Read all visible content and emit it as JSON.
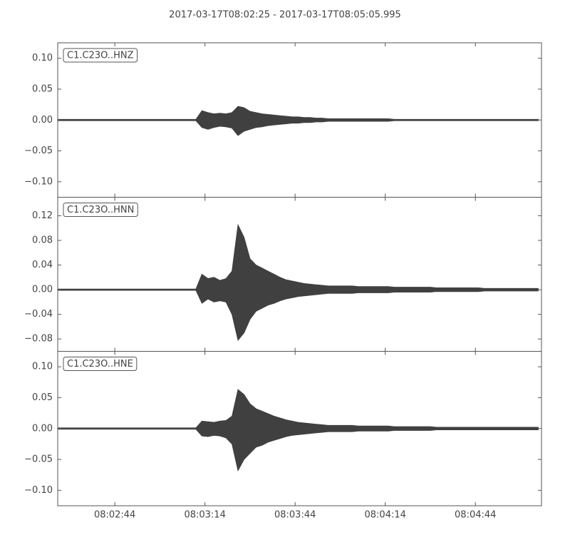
{
  "chart_data": [
    {
      "type": "line",
      "title": "2017-03-17T08:02:25  -  2017-03-17T08:05:05.995",
      "label": "C1.C23O..HNZ",
      "x": [
        0,
        2,
        4,
        6,
        8,
        10,
        12,
        14,
        16,
        18,
        20,
        22,
        24,
        26,
        28,
        30,
        32,
        34,
        36,
        38,
        40,
        42,
        44,
        46,
        48,
        50,
        52,
        54,
        56,
        58,
        60,
        62,
        64,
        66,
        68,
        70,
        72,
        74,
        76,
        78,
        80,
        82,
        84,
        86,
        88,
        90,
        92,
        94,
        96,
        98,
        100,
        102,
        104,
        106,
        108,
        110,
        112,
        114,
        116,
        118,
        120,
        122,
        124,
        126,
        128,
        130,
        132,
        134,
        136,
        138,
        140,
        142,
        144,
        146,
        148,
        150,
        152,
        154,
        156,
        158,
        160
      ],
      "xlim": [
        0,
        160.995
      ],
      "ylim": [
        -0.125,
        0.125
      ],
      "yticks": [
        {
          "value": 0.1,
          "label": "0.10"
        },
        {
          "value": 0.05,
          "label": "0.05"
        },
        {
          "value": 0,
          "label": "0.00"
        },
        {
          "value": -0.05,
          "label": "−0.05"
        },
        {
          "value": -0.1,
          "label": "−0.10"
        }
      ],
      "series": [
        {
          "color": "#404040",
          "values": [
            0.001,
            0.001,
            0.001,
            0.001,
            0.001,
            0.001,
            0.001,
            0.001,
            0.001,
            0.001,
            0.001,
            0.001,
            0.001,
            0.001,
            0.001,
            0.001,
            0.001,
            0.001,
            0.001,
            0.001,
            0.001,
            0.001,
            0.001,
            0.001,
            0.015,
            0.012,
            0.01,
            0.011,
            0.01,
            0.012,
            0.022,
            0.02,
            0.014,
            0.012,
            0.01,
            0.009,
            0.008,
            0.007,
            0.006,
            0.005,
            0.005,
            0.004,
            0.004,
            0.003,
            0.003,
            0.002,
            0.002,
            0.002,
            0.002,
            0.002,
            0.002,
            0.002,
            0.002,
            0.002,
            0.002,
            0.002,
            0.001,
            0.001,
            0.001,
            0.001,
            0.001,
            0.001,
            0.001,
            0.001,
            0.001,
            0.001,
            0.001,
            0.001,
            0.001,
            0.001,
            0.001,
            0.001,
            0.001,
            0.001,
            0.001,
            0.001,
            0.001,
            0.001,
            0.001,
            0.001,
            0.001
          ]
        },
        {
          "color": "#404040",
          "values": [
            -0.001,
            -0.001,
            -0.001,
            -0.001,
            -0.001,
            -0.001,
            -0.001,
            -0.001,
            -0.001,
            -0.001,
            -0.001,
            -0.001,
            -0.001,
            -0.001,
            -0.001,
            -0.001,
            -0.001,
            -0.001,
            -0.001,
            -0.001,
            -0.001,
            -0.001,
            -0.001,
            -0.001,
            -0.012,
            -0.015,
            -0.012,
            -0.01,
            -0.011,
            -0.013,
            -0.025,
            -0.018,
            -0.015,
            -0.012,
            -0.011,
            -0.009,
            -0.008,
            -0.007,
            -0.006,
            -0.005,
            -0.005,
            -0.004,
            -0.004,
            -0.003,
            -0.003,
            -0.002,
            -0.002,
            -0.002,
            -0.002,
            -0.002,
            -0.002,
            -0.002,
            -0.002,
            -0.002,
            -0.002,
            -0.002,
            -0.001,
            -0.001,
            -0.001,
            -0.001,
            -0.001,
            -0.001,
            -0.001,
            -0.001,
            -0.001,
            -0.001,
            -0.001,
            -0.001,
            -0.001,
            -0.001,
            -0.001,
            -0.001,
            -0.001,
            -0.001,
            -0.001,
            -0.001,
            -0.001,
            -0.001,
            -0.001,
            -0.001,
            -0.001
          ]
        }
      ]
    },
    {
      "type": "line",
      "label": "C1.C23O..HNN",
      "x": [
        0,
        2,
        4,
        6,
        8,
        10,
        12,
        14,
        16,
        18,
        20,
        22,
        24,
        26,
        28,
        30,
        32,
        34,
        36,
        38,
        40,
        42,
        44,
        46,
        48,
        50,
        52,
        54,
        56,
        58,
        60,
        62,
        64,
        66,
        68,
        70,
        72,
        74,
        76,
        78,
        80,
        82,
        84,
        86,
        88,
        90,
        92,
        94,
        96,
        98,
        100,
        102,
        104,
        106,
        108,
        110,
        112,
        114,
        116,
        118,
        120,
        122,
        124,
        126,
        128,
        130,
        132,
        134,
        136,
        138,
        140,
        142,
        144,
        146,
        148,
        150,
        152,
        154,
        156,
        158,
        160
      ],
      "xlim": [
        0,
        160.995
      ],
      "ylim": [
        -0.1,
        0.15
      ],
      "yticks": [
        {
          "value": 0.12,
          "label": "0.12"
        },
        {
          "value": 0.08,
          "label": "0.08"
        },
        {
          "value": 0.04,
          "label": "0.04"
        },
        {
          "value": 0,
          "label": "0.00"
        },
        {
          "value": -0.04,
          "label": "−0.04"
        },
        {
          "value": -0.08,
          "label": "−0.08"
        }
      ],
      "series": [
        {
          "color": "#404040",
          "values": [
            0.001,
            0.001,
            0.001,
            0.001,
            0.001,
            0.001,
            0.001,
            0.001,
            0.001,
            0.001,
            0.001,
            0.001,
            0.001,
            0.001,
            0.001,
            0.001,
            0.001,
            0.001,
            0.001,
            0.001,
            0.001,
            0.001,
            0.001,
            0.001,
            0.025,
            0.018,
            0.02,
            0.015,
            0.018,
            0.03,
            0.105,
            0.085,
            0.05,
            0.04,
            0.035,
            0.03,
            0.025,
            0.02,
            0.016,
            0.014,
            0.012,
            0.01,
            0.009,
            0.008,
            0.007,
            0.006,
            0.006,
            0.006,
            0.006,
            0.006,
            0.005,
            0.005,
            0.005,
            0.005,
            0.005,
            0.005,
            0.004,
            0.004,
            0.004,
            0.004,
            0.004,
            0.004,
            0.004,
            0.003,
            0.003,
            0.003,
            0.003,
            0.003,
            0.003,
            0.003,
            0.003,
            0.002,
            0.002,
            0.002,
            0.002,
            0.002,
            0.002,
            0.002,
            0.002,
            0.002,
            0.002
          ]
        },
        {
          "color": "#404040",
          "values": [
            -0.001,
            -0.001,
            -0.001,
            -0.001,
            -0.001,
            -0.001,
            -0.001,
            -0.001,
            -0.001,
            -0.001,
            -0.001,
            -0.001,
            -0.001,
            -0.001,
            -0.001,
            -0.001,
            -0.001,
            -0.001,
            -0.001,
            -0.001,
            -0.001,
            -0.001,
            -0.001,
            -0.001,
            -0.022,
            -0.015,
            -0.02,
            -0.018,
            -0.02,
            -0.04,
            -0.082,
            -0.07,
            -0.048,
            -0.035,
            -0.03,
            -0.025,
            -0.022,
            -0.018,
            -0.015,
            -0.013,
            -0.011,
            -0.01,
            -0.009,
            -0.008,
            -0.007,
            -0.006,
            -0.006,
            -0.006,
            -0.006,
            -0.006,
            -0.005,
            -0.005,
            -0.005,
            -0.005,
            -0.005,
            -0.005,
            -0.004,
            -0.004,
            -0.004,
            -0.004,
            -0.004,
            -0.004,
            -0.004,
            -0.003,
            -0.003,
            -0.003,
            -0.003,
            -0.003,
            -0.003,
            -0.003,
            -0.003,
            -0.002,
            -0.002,
            -0.002,
            -0.002,
            -0.002,
            -0.002,
            -0.002,
            -0.002,
            -0.002,
            -0.002
          ]
        }
      ]
    },
    {
      "type": "line",
      "label": "C1.C23O..HNE",
      "x": [
        0,
        2,
        4,
        6,
        8,
        10,
        12,
        14,
        16,
        18,
        20,
        22,
        24,
        26,
        28,
        30,
        32,
        34,
        36,
        38,
        40,
        42,
        44,
        46,
        48,
        50,
        52,
        54,
        56,
        58,
        60,
        62,
        64,
        66,
        68,
        70,
        72,
        74,
        76,
        78,
        80,
        82,
        84,
        86,
        88,
        90,
        92,
        94,
        96,
        98,
        100,
        102,
        104,
        106,
        108,
        110,
        112,
        114,
        116,
        118,
        120,
        122,
        124,
        126,
        128,
        130,
        132,
        134,
        136,
        138,
        140,
        142,
        144,
        146,
        148,
        150,
        152,
        154,
        156,
        158,
        160
      ],
      "xlim": [
        0,
        160.995
      ],
      "ylim": [
        -0.125,
        0.125
      ],
      "xticks": [
        {
          "value": 19,
          "label": "08:02:44"
        },
        {
          "value": 49,
          "label": "08:03:14"
        },
        {
          "value": 79,
          "label": "08:03:44"
        },
        {
          "value": 109,
          "label": "08:04:14"
        },
        {
          "value": 139,
          "label": "08:04:44"
        }
      ],
      "yticks": [
        {
          "value": 0.1,
          "label": "0.10"
        },
        {
          "value": 0.05,
          "label": "0.05"
        },
        {
          "value": 0,
          "label": "0.00"
        },
        {
          "value": -0.05,
          "label": "−0.05"
        },
        {
          "value": -0.1,
          "label": "−0.10"
        }
      ],
      "series": [
        {
          "color": "#404040",
          "values": [
            0.001,
            0.001,
            0.001,
            0.001,
            0.001,
            0.001,
            0.001,
            0.001,
            0.001,
            0.001,
            0.001,
            0.001,
            0.001,
            0.001,
            0.001,
            0.001,
            0.001,
            0.001,
            0.001,
            0.001,
            0.001,
            0.001,
            0.001,
            0.001,
            0.012,
            0.011,
            0.01,
            0.012,
            0.013,
            0.02,
            0.063,
            0.055,
            0.04,
            0.032,
            0.028,
            0.024,
            0.02,
            0.017,
            0.014,
            0.012,
            0.01,
            0.009,
            0.008,
            0.007,
            0.006,
            0.005,
            0.005,
            0.005,
            0.005,
            0.005,
            0.004,
            0.004,
            0.004,
            0.004,
            0.004,
            0.004,
            0.003,
            0.003,
            0.003,
            0.003,
            0.003,
            0.003,
            0.003,
            0.002,
            0.002,
            0.002,
            0.002,
            0.002,
            0.002,
            0.002,
            0.002,
            0.002,
            0.002,
            0.002,
            0.002,
            0.002,
            0.002,
            0.002,
            0.002,
            0.002,
            0.002
          ]
        },
        {
          "color": "#404040",
          "values": [
            -0.001,
            -0.001,
            -0.001,
            -0.001,
            -0.001,
            -0.001,
            -0.001,
            -0.001,
            -0.001,
            -0.001,
            -0.001,
            -0.001,
            -0.001,
            -0.001,
            -0.001,
            -0.001,
            -0.001,
            -0.001,
            -0.001,
            -0.001,
            -0.001,
            -0.001,
            -0.001,
            -0.001,
            -0.012,
            -0.013,
            -0.011,
            -0.012,
            -0.015,
            -0.025,
            -0.068,
            -0.05,
            -0.04,
            -0.03,
            -0.027,
            -0.022,
            -0.019,
            -0.016,
            -0.013,
            -0.011,
            -0.01,
            -0.009,
            -0.008,
            -0.007,
            -0.006,
            -0.005,
            -0.005,
            -0.005,
            -0.005,
            -0.005,
            -0.004,
            -0.004,
            -0.004,
            -0.004,
            -0.004,
            -0.004,
            -0.003,
            -0.003,
            -0.003,
            -0.003,
            -0.003,
            -0.003,
            -0.003,
            -0.002,
            -0.002,
            -0.002,
            -0.002,
            -0.002,
            -0.002,
            -0.002,
            -0.002,
            -0.002,
            -0.002,
            -0.002,
            -0.002,
            -0.002,
            -0.002,
            -0.002,
            -0.002,
            -0.002,
            -0.002
          ]
        }
      ]
    }
  ]
}
